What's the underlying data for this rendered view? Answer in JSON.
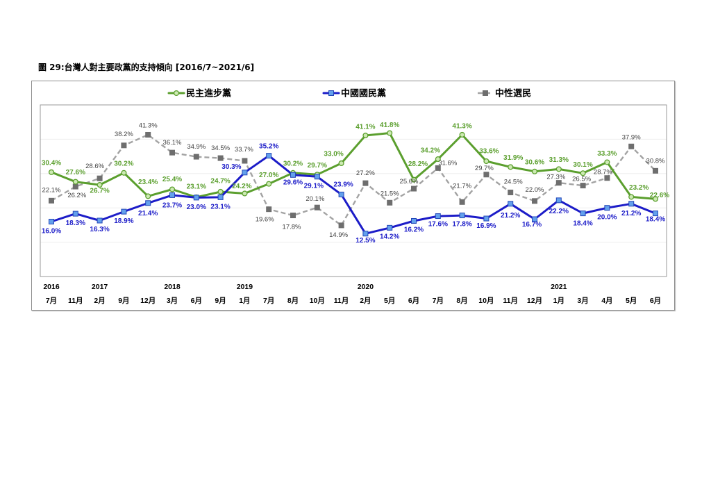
{
  "chart_data": {
    "type": "line",
    "title": "圖 29:台灣人對主要政黨的支持傾向 [2016/7~2021/6]",
    "ylim": [
      0,
      50
    ],
    "grid": true,
    "legend_position": "top",
    "categories": [
      {
        "year": "2016",
        "month": "7月"
      },
      {
        "month": "11月"
      },
      {
        "year": "2017",
        "month": "2月"
      },
      {
        "month": "9月"
      },
      {
        "month": "12月"
      },
      {
        "year": "2018",
        "month": "3月"
      },
      {
        "month": "6月"
      },
      {
        "month": "9月"
      },
      {
        "year": "2019",
        "month": "1月"
      },
      {
        "month": "7月"
      },
      {
        "month": "8月"
      },
      {
        "month": "10月"
      },
      {
        "month": "11月"
      },
      {
        "year": "2020",
        "month": "2月"
      },
      {
        "month": "5月"
      },
      {
        "month": "6月"
      },
      {
        "month": "7月"
      },
      {
        "month": "8月"
      },
      {
        "month": "10月"
      },
      {
        "month": "11月"
      },
      {
        "month": "12月"
      },
      {
        "year": "2021",
        "month": "1月"
      },
      {
        "month": "3月"
      },
      {
        "month": "4月"
      },
      {
        "month": "5月"
      },
      {
        "month": "6月"
      }
    ],
    "series": [
      {
        "name": "民主進步黨",
        "color": "#5b9f2e",
        "marker_color": "#cdeab3",
        "label_color": "#5b9f2e",
        "values": [
          30.4,
          27.6,
          26.7,
          30.2,
          23.4,
          25.4,
          23.1,
          24.7,
          24.2,
          27.0,
          30.2,
          29.7,
          33.0,
          41.1,
          41.8,
          28.2,
          34.2,
          41.3,
          33.6,
          31.9,
          30.6,
          31.3,
          30.1,
          33.3,
          23.2,
          22.6
        ],
        "labels": [
          "30.4%",
          "27.6%",
          "26.7%",
          "30.2%",
          "23.4%",
          "25.4%",
          "23.1%",
          "24.7%",
          "24.2%",
          "27.0%",
          "30.2%",
          "29.7%",
          "33.0%",
          "41.1%",
          "41.8%",
          "28.2%",
          "34.2%",
          "41.3%",
          "33.6%",
          "31.9%",
          "30.6%",
          "31.3%",
          "30.1%",
          "33.3%",
          "23.2%",
          "22.6%"
        ]
      },
      {
        "name": "中國國民黨",
        "color": "#1c1cc8",
        "marker_color": "#63a0ec",
        "label_color": "#1c1cc8",
        "values": [
          16.0,
          18.3,
          16.3,
          18.9,
          21.4,
          23.7,
          23.0,
          23.1,
          30.3,
          35.2,
          29.6,
          29.1,
          23.9,
          12.5,
          14.2,
          16.2,
          17.6,
          17.8,
          16.9,
          21.2,
          16.7,
          22.2,
          18.4,
          20.0,
          21.2,
          18.4
        ],
        "labels": [
          "16.0%",
          "18.3%",
          "16.3%",
          "18.9%",
          "21.4%",
          "23.7%",
          "23.0%",
          "23.1%",
          "30.3%",
          "35.2%",
          "29.6%",
          "29.1%",
          "23.9%",
          "12.5%",
          "14.2%",
          "16.2%",
          "17.6%",
          "17.8%",
          "16.9%",
          "21.2%",
          "16.7%",
          "22.2%",
          "18.4%",
          "20.0%",
          "21.2%",
          "18.4%"
        ]
      },
      {
        "name": "中性選民",
        "color": "#a3a3a3",
        "marker_color": "#6e6e6e",
        "label_color": "#404040",
        "values": [
          22.1,
          26.2,
          28.6,
          38.2,
          41.3,
          36.1,
          34.9,
          34.5,
          33.7,
          19.6,
          17.8,
          20.1,
          14.9,
          27.2,
          21.5,
          25.6,
          31.6,
          21.7,
          29.7,
          24.5,
          22.0,
          27.3,
          26.5,
          28.7,
          37.9,
          30.8
        ],
        "labels": [
          "22.1%",
          "26.2%",
          "28.6%",
          "38.2%",
          "41.3%",
          "36.1%",
          "34.9%",
          "34.5%",
          "33.7%",
          "19.6%",
          "17.8%",
          "20.1%",
          "14.9%",
          "27.2%",
          "21.5%",
          "25.6%",
          "31.6%",
          "21.7%",
          "29.7%",
          "24.5%",
          "22.0%",
          "27.3%",
          "26.5%",
          "28.7%",
          "37.9%",
          "30.8%"
        ]
      }
    ]
  }
}
